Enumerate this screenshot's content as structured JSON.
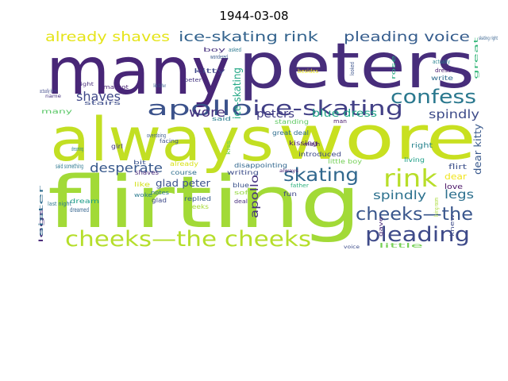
{
  "title": "1944-03-08",
  "words": [
    {
      "text": "many",
      "color": "#482677"
    },
    {
      "text": "peters",
      "color": "#472d7b"
    },
    {
      "text": "always",
      "color": "#c2df23"
    },
    {
      "text": "wore",
      "color": "#c8e020"
    },
    {
      "text": "flirting",
      "color": "#a2da37"
    },
    {
      "text": "apollo",
      "color": "#3b528b"
    },
    {
      "text": "ice-skating",
      "color": "#424086"
    },
    {
      "text": "confess",
      "color": "#2a788e"
    },
    {
      "text": "cheeks—the cheeks",
      "color": "#b5de2b"
    },
    {
      "text": "cheeks—the",
      "color": "#39568c"
    },
    {
      "text": "pleading",
      "color": "#3e4a89"
    },
    {
      "text": "skating",
      "color": "#31688e"
    },
    {
      "text": "rink",
      "color": "#b8de29"
    },
    {
      "text": "already shaves",
      "color": "#e5e419"
    },
    {
      "text": "ice-skating rink",
      "color": "#33638d"
    },
    {
      "text": "pleading voice",
      "color": "#365d8d"
    },
    {
      "text": "shaves",
      "color": "#3f4889"
    },
    {
      "text": "desperate",
      "color": "#38598c"
    },
    {
      "text": "wore",
      "color": "#46317e"
    },
    {
      "text": "peters",
      "color": "#433e85"
    },
    {
      "text": "blue dress",
      "color": "#20a386"
    },
    {
      "text": "spindly",
      "color": "#3e4c8a"
    },
    {
      "text": "spindly",
      "color": "#2c718e"
    },
    {
      "text": "legs",
      "color": "#2d708e"
    },
    {
      "text": "glad peter",
      "color": "#3b518b"
    },
    {
      "text": "ice-skating",
      "color": "#22a785"
    },
    {
      "text": "apollo",
      "color": "#46327e"
    },
    {
      "text": "dear kitty",
      "color": "#38588c"
    },
    {
      "text": "dear",
      "color": "#f1e51d"
    },
    {
      "text": "love",
      "color": "#471164"
    },
    {
      "text": "flirt",
      "color": "#3c4f8a"
    },
    {
      "text": "right",
      "color": "#26828e"
    },
    {
      "text": "kissing",
      "color": "#48196b"
    },
    {
      "text": "much",
      "color": "#482374"
    },
    {
      "text": "great deal",
      "color": "#2e6d8e"
    },
    {
      "text": "standing",
      "color": "#5ec962"
    },
    {
      "text": "man",
      "color": "#48186a"
    },
    {
      "text": "disappointing",
      "color": "#31678e"
    },
    {
      "text": "introduced",
      "color": "#3e4989"
    },
    {
      "text": "writing",
      "color": "#3d4e8a"
    },
    {
      "text": "always",
      "color": "#482071"
    },
    {
      "text": "little boy",
      "color": "#73d056"
    },
    {
      "text": "living",
      "color": "#1fa088"
    },
    {
      "text": "blue",
      "color": "#3b528b"
    },
    {
      "text": "father",
      "color": "#2db27d"
    },
    {
      "text": "fun",
      "color": "#3f4788"
    },
    {
      "text": "course",
      "color": "#2e6e8e"
    },
    {
      "text": "already",
      "color": "#d8e219"
    },
    {
      "text": "shaves",
      "color": "#472a7a"
    },
    {
      "text": "replied",
      "color": "#365c8d"
    },
    {
      "text": "glad",
      "color": "#3e4a89"
    },
    {
      "text": "cheeks",
      "color": "#a5db36"
    },
    {
      "text": "soft",
      "color": "#95d840"
    },
    {
      "text": "deal",
      "color": "#472f7d"
    },
    {
      "text": "like",
      "color": "#d2e21b"
    },
    {
      "text": "woke",
      "color": "#29798e"
    },
    {
      "text": "notes",
      "color": "#2c728e"
    },
    {
      "text": "dream",
      "color": "#1f9e89"
    },
    {
      "text": "dreamed",
      "color": "#33638d"
    },
    {
      "text": "legs",
      "color": "#482878"
    },
    {
      "text": "last night",
      "color": "#2a768e"
    },
    {
      "text": "sister",
      "color": "#2f6c8e"
    },
    {
      "text": "said something",
      "color": "#2a778e"
    },
    {
      "text": "dreaming",
      "color": "#27808e"
    },
    {
      "text": "girl",
      "color": "#443983"
    },
    {
      "text": "bit",
      "color": "#3a548c"
    },
    {
      "text": "kiss",
      "color": "#6ece58"
    },
    {
      "text": "said",
      "color": "#287c8e"
    },
    {
      "text": "many",
      "color": "#58c765"
    },
    {
      "text": "overdoing",
      "color": "#38598c"
    },
    {
      "text": "facing",
      "color": "#3b518b"
    },
    {
      "text": "stairs",
      "color": "#3d4d8a"
    },
    {
      "text": "actually knew",
      "color": "#3f4788"
    },
    {
      "text": "name",
      "color": "#46337f"
    },
    {
      "text": "night",
      "color": "#472c7a"
    },
    {
      "text": "margot",
      "color": "#482475"
    },
    {
      "text": "like father",
      "color": "#355f8d"
    },
    {
      "text": "peter",
      "color": "#453581"
    },
    {
      "text": "kitty",
      "color": "#3f4889"
    },
    {
      "text": "wondered",
      "color": "#38598c"
    },
    {
      "text": "asked",
      "color": "#2a778e"
    },
    {
      "text": "boy",
      "color": "#46307e"
    },
    {
      "text": "besides",
      "color": "#eae51a"
    },
    {
      "text": "looked",
      "color": "#3b528b"
    },
    {
      "text": "rose",
      "color": "#25ab82"
    },
    {
      "text": "actually",
      "color": "#26828e"
    },
    {
      "text": "dress",
      "color": "#481c6e"
    },
    {
      "text": "write",
      "color": "#2f6b8e"
    },
    {
      "text": "great",
      "color": "#35b779"
    },
    {
      "text": "living room",
      "color": "#a8db34"
    },
    {
      "text": "knew",
      "color": "#3e4c8a"
    },
    {
      "text": "gave",
      "color": "#482878"
    },
    {
      "text": "voice",
      "color": "#3d4d8a"
    },
    {
      "text": "little",
      "color": "#75d054"
    },
    {
      "text": "skating right",
      "color": "#34608d"
    },
    {
      "text": "something",
      "color": "#fde725"
    }
  ]
}
